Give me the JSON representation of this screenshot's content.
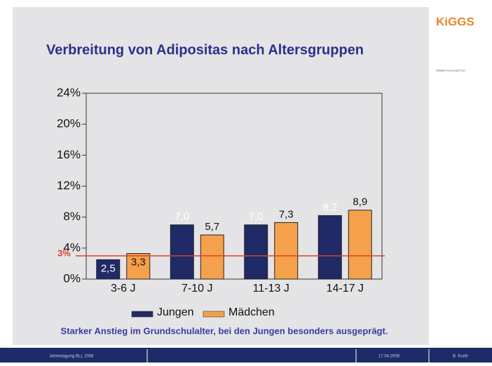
{
  "chart_data": {
    "type": "bar",
    "title": "Verbreitung von Adipositas nach Altersgruppen",
    "categories": [
      "3-6 J",
      "7-10 J",
      "11-13 J",
      "14-17 J"
    ],
    "series": [
      {
        "name": "Jungen",
        "color": "#1f2a66",
        "values": [
          2.5,
          7.0,
          7.0,
          8.2
        ],
        "value_labels": [
          "2,5",
          "7,0",
          "7,0",
          "8,2"
        ]
      },
      {
        "name": "Mädchen",
        "color": "#f5a04a",
        "values": [
          3.3,
          5.7,
          7.3,
          8.9
        ],
        "value_labels": [
          "3,3",
          "5,7",
          "7,3",
          "8,9"
        ]
      }
    ],
    "ylim": [
      0,
      24
    ],
    "yticks": [
      {
        "value": 0,
        "label": "0%"
      },
      {
        "value": 4,
        "label": "4%"
      },
      {
        "value": 8,
        "label": "8%"
      },
      {
        "value": 12,
        "label": "12%"
      },
      {
        "value": 16,
        "label": "16%"
      },
      {
        "value": 20,
        "label": "20%"
      },
      {
        "value": 24,
        "label": "24%"
      }
    ],
    "reference_line": {
      "value": 3,
      "label": "3%",
      "color": "#d9452b"
    },
    "caption": "Starker Anstieg im Grundschulalter, bei den Jungen besonders ausgeprägt."
  },
  "logo": {
    "name": "KiGGS",
    "institute": "ROBERT KOCH INSTITUT"
  },
  "footer": {
    "event": "Jahrestagung BLL 2008",
    "date": "17.04.2008",
    "author": "B. Kurth"
  }
}
